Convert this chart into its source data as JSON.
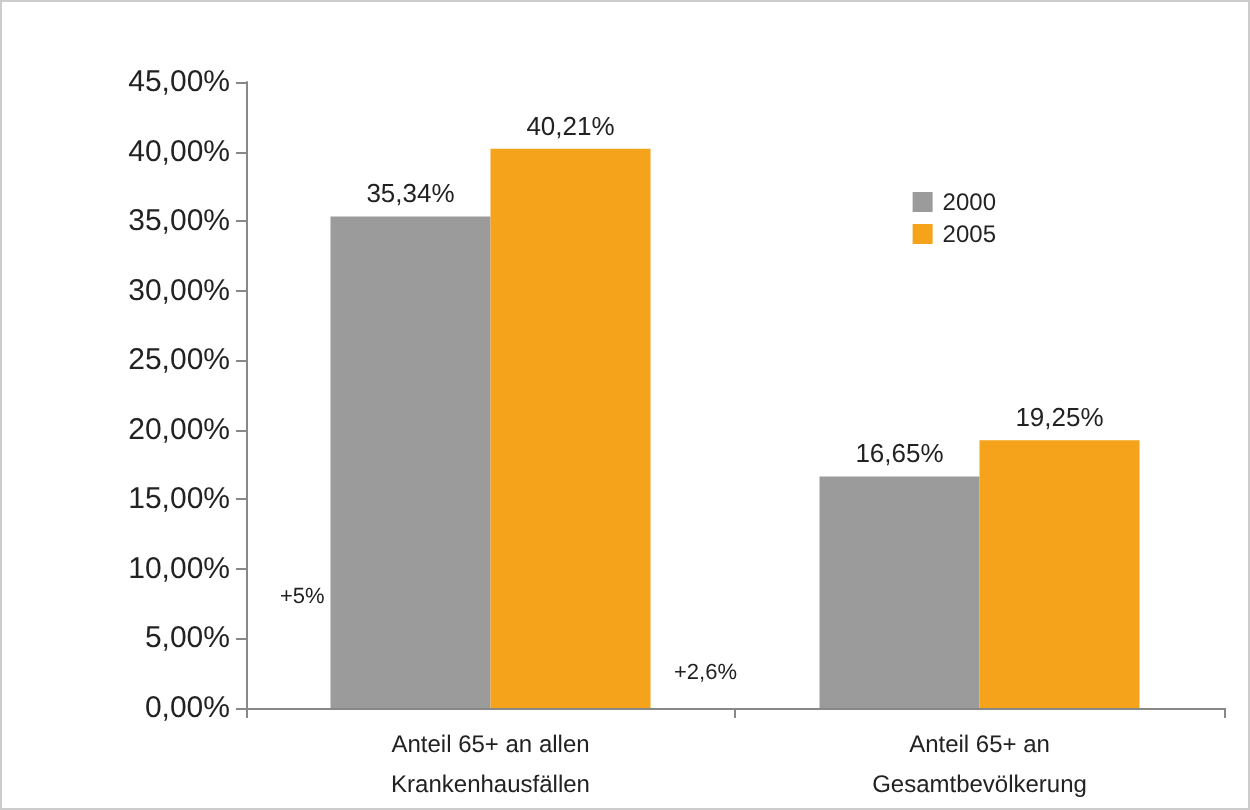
{
  "chart_data": {
    "type": "bar",
    "categories": [
      "Anteil 65+ an allen\nKrankenhausfällen",
      "Anteil 65+ an\nGesamtbevölkerung"
    ],
    "series": [
      {
        "name": "2000",
        "color": "#9b9b9b",
        "values": [
          35.34,
          16.65
        ],
        "value_labels": [
          "35,34%",
          "16,65%"
        ]
      },
      {
        "name": "2005",
        "color": "#f5a31a",
        "values": [
          40.21,
          19.25
        ],
        "value_labels": [
          "40,21%",
          "19,25%"
        ]
      }
    ],
    "ylim": [
      0,
      45
    ],
    "yticks": [
      {
        "value": 0,
        "label": "0,00%"
      },
      {
        "value": 5,
        "label": "5,00%"
      },
      {
        "value": 10,
        "label": "10,00%"
      },
      {
        "value": 15,
        "label": "15,00%"
      },
      {
        "value": 20,
        "label": "20,00%"
      },
      {
        "value": 25,
        "label": "25,00%"
      },
      {
        "value": 30,
        "label": "30,00%"
      },
      {
        "value": 35,
        "label": "35,00%"
      },
      {
        "value": 40,
        "label": "40,00%"
      },
      {
        "value": 45,
        "label": "45,00%"
      }
    ],
    "annotations": [
      "+5%",
      "+2,6%"
    ],
    "grid": false,
    "legend": "top right"
  }
}
